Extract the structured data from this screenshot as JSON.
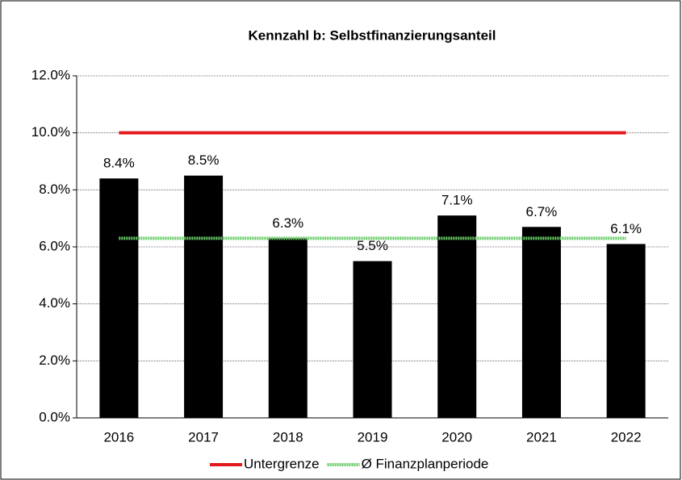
{
  "chart_data": {
    "type": "bar",
    "title": "Kennzahl b: Selbstfinanzierungsanteil",
    "categories": [
      "2016",
      "2017",
      "2018",
      "2019",
      "2020",
      "2021",
      "2022"
    ],
    "values": [
      8.4,
      8.5,
      6.3,
      5.5,
      7.1,
      6.7,
      6.1
    ],
    "value_labels": [
      "8.4%",
      "8.5%",
      "6.3%",
      "5.5%",
      "7.1%",
      "6.7%",
      "6.1%"
    ],
    "color": "#000000",
    "series": [
      {
        "name": "Untergrenze",
        "type": "line",
        "color": "#e31a1c",
        "values": [
          10,
          10,
          10,
          10,
          10,
          10,
          10
        ]
      },
      {
        "name": "Ø Finanzplanperiode",
        "type": "line",
        "color": "#66cc66",
        "values": [
          6.3,
          6.3,
          6.3,
          6.3,
          6.3,
          6.3,
          6.3
        ]
      }
    ],
    "ylim": [
      0,
      12
    ],
    "yticks": [
      {
        "value": 0,
        "label": "0.0%"
      },
      {
        "value": 2,
        "label": "2.0%"
      },
      {
        "value": 4,
        "label": "4.0%"
      },
      {
        "value": 6,
        "label": "6.0%"
      },
      {
        "value": 8,
        "label": "8.0%"
      },
      {
        "value": 10,
        "label": "10.0%"
      },
      {
        "value": 12,
        "label": "12.0%"
      }
    ],
    "grid": true,
    "legend": "bottom"
  }
}
